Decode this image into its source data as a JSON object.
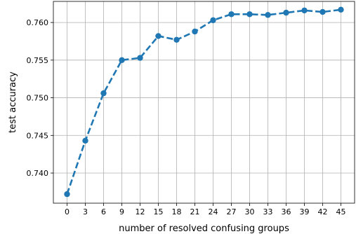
{
  "chart_data": {
    "type": "line",
    "title": "",
    "xlabel": "number of resolved confusing groups",
    "ylabel": "test accuracy",
    "x": [
      0,
      3,
      6,
      9,
      12,
      15,
      18,
      21,
      24,
      27,
      30,
      33,
      36,
      39,
      42,
      45
    ],
    "series": [
      {
        "values": [
          0.7372,
          0.7443,
          0.7506,
          0.755,
          0.7553,
          0.7582,
          0.7577,
          0.7588,
          0.7603,
          0.7611,
          0.7611,
          0.761,
          0.7613,
          0.7616,
          0.7614,
          0.7617
        ],
        "color": "#1f77b4",
        "line_style": "dashed",
        "marker": "circle"
      }
    ],
    "x_ticks": [
      "0",
      "3",
      "6",
      "9",
      "12",
      "15",
      "18",
      "21",
      "24",
      "27",
      "30",
      "33",
      "36",
      "39",
      "42",
      "45"
    ],
    "y_ticks": [
      "0.740",
      "0.745",
      "0.750",
      "0.755",
      "0.760"
    ],
    "y_tick_values": [
      0.74,
      0.745,
      0.75,
      0.755,
      0.76
    ],
    "xlim": [
      -2.25,
      47.25
    ],
    "ylim": [
      0.736,
      0.7628
    ],
    "grid": true,
    "legend": "none"
  }
}
